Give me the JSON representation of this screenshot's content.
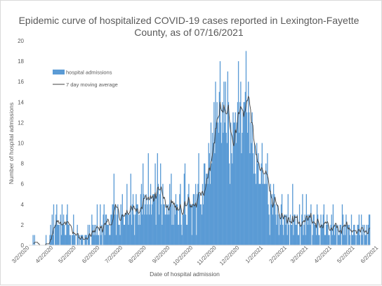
{
  "chart_data": {
    "type": "bar",
    "title_line1": "Epidemic curve of hospitalized COVID-19 cases reported in Lexington-Fayette",
    "title_line2": "County, as of 07/16/2021",
    "xlabel": "Date of hospital admission",
    "ylabel": "Number of hospital admissions",
    "ylim": [
      0,
      20
    ],
    "yticks": [
      "0",
      "2",
      "4",
      "6",
      "8",
      "10",
      "12",
      "14",
      "16",
      "18",
      "20"
    ],
    "xticks": [
      "3/2/2020",
      "4/2/2020",
      "5/2/2020",
      "6/2/2020",
      "7/2/2020",
      "8/2/2020",
      "9/2/2020",
      "10/2/2020",
      "11/2/2020",
      "12/2/2020",
      "1/2/2021",
      "2/2/2021",
      "3/2/2021",
      "4/2/2021",
      "5/2/2021",
      "6/2/2021",
      "7/2/2021"
    ],
    "grid": false,
    "legend_position": "top-left",
    "series": [
      {
        "name": "hospital admissions",
        "type": "bar",
        "color": "#5b9bd5",
        "start_date": "2020-03-01",
        "values": [
          0,
          0,
          0,
          0,
          0,
          1,
          0,
          1,
          0,
          0,
          0,
          0,
          0,
          0,
          0,
          0,
          0,
          0,
          0,
          0,
          0,
          0,
          1,
          0,
          0,
          0,
          0,
          1,
          2,
          1,
          3,
          1,
          4,
          0,
          2,
          3,
          4,
          2,
          2,
          2,
          0,
          3,
          1,
          4,
          2,
          3,
          2,
          1,
          1,
          3,
          4,
          2,
          2,
          1,
          1,
          0,
          1,
          1,
          3,
          1,
          1,
          0,
          0,
          2,
          1,
          0,
          1,
          0,
          1,
          1,
          1,
          0,
          0,
          1,
          1,
          1,
          0,
          2,
          1,
          2,
          0,
          0,
          3,
          2,
          1,
          2,
          1,
          2,
          1,
          4,
          1,
          1,
          0,
          4,
          1,
          2,
          0,
          3,
          4,
          1,
          3,
          3,
          2,
          2,
          2,
          1,
          1,
          3,
          3,
          4,
          4,
          7,
          3,
          4,
          1,
          3,
          4,
          2,
          2,
          1,
          4,
          3,
          5,
          3,
          2,
          2,
          3,
          3,
          6,
          3,
          2,
          3,
          3,
          7,
          2,
          4,
          5,
          3,
          1,
          3,
          5,
          4,
          4,
          2,
          3,
          2,
          5,
          6,
          3,
          8,
          5,
          3,
          4,
          5,
          3,
          4,
          9,
          3,
          4,
          6,
          3,
          4,
          5,
          5,
          5,
          8,
          2,
          5,
          9,
          6,
          3,
          5,
          8,
          4,
          2,
          6,
          4,
          4,
          3,
          3,
          4,
          3,
          4,
          3,
          6,
          4,
          7,
          2,
          4,
          2,
          4,
          3,
          5,
          4,
          4,
          2,
          2,
          5,
          6,
          2,
          1,
          3,
          3,
          7,
          8,
          3,
          2,
          2,
          5,
          6,
          4,
          4,
          4,
          1,
          4,
          5,
          5,
          4,
          6,
          1,
          5,
          6,
          9,
          5,
          4,
          4,
          3,
          6,
          4,
          8,
          8,
          6,
          7,
          7,
          6,
          10,
          9,
          6,
          12,
          8,
          11,
          10,
          14,
          9,
          16,
          12,
          14,
          12,
          11,
          15,
          18,
          12,
          10,
          14,
          11,
          16,
          12,
          16,
          11,
          10,
          17,
          14,
          8,
          6,
          12,
          9,
          8,
          13,
          12,
          12,
          13,
          10,
          12,
          14,
          18,
          11,
          14,
          16,
          9,
          11,
          13,
          14,
          14,
          15,
          19,
          13,
          11,
          16,
          13,
          9,
          12,
          10,
          13,
          9,
          7,
          10,
          7,
          6,
          10,
          8,
          9,
          6,
          6,
          6,
          8,
          10,
          6,
          7,
          6,
          6,
          8,
          6,
          9,
          4,
          3,
          1,
          6,
          4,
          5,
          3,
          6,
          5,
          4,
          3,
          2,
          4,
          3,
          1,
          3,
          2,
          4,
          5,
          2,
          1,
          3,
          3,
          2,
          3,
          1,
          5,
          2,
          0,
          3,
          2,
          2,
          6,
          1,
          3,
          3,
          2,
          2,
          3,
          1,
          1,
          4,
          0,
          2,
          3,
          5,
          1,
          2,
          3,
          1,
          5,
          3,
          2,
          3,
          3,
          2,
          4,
          0,
          1,
          3,
          3,
          2,
          2,
          1,
          4,
          3,
          1,
          1,
          0,
          3,
          2,
          2,
          3,
          4,
          1,
          1,
          2,
          3,
          2,
          1,
          1,
          0,
          2,
          3,
          1,
          4,
          2,
          1,
          2,
          2,
          0,
          2,
          1,
          1,
          2,
          2,
          0,
          4,
          3,
          1,
          2,
          1,
          3,
          2,
          0,
          2,
          2,
          1,
          0,
          3,
          1,
          1,
          2,
          2,
          1,
          0,
          1,
          2,
          2,
          3,
          1,
          0,
          3,
          1,
          2,
          0,
          2,
          1,
          1,
          2,
          0,
          2,
          3,
          3
        ]
      },
      {
        "name": "7 day moving average",
        "type": "line",
        "color": "#404040"
      }
    ]
  }
}
